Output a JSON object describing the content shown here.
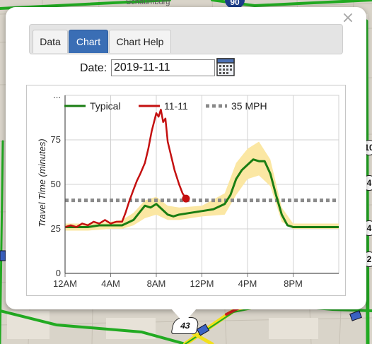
{
  "map": {
    "labels": [
      "Schaumburg"
    ],
    "shields": [
      "90",
      "43"
    ],
    "edge_shields": [
      "10",
      "4",
      "4",
      "2"
    ],
    "colors": {
      "background": "#d8d3c8",
      "road_green": "#22aa22",
      "road_yellow": "#f2e01a",
      "road_red": "#d42020"
    }
  },
  "popup": {
    "close_label": "×",
    "tabs": [
      {
        "label": "Data",
        "active": false
      },
      {
        "label": "Chart",
        "active": true
      },
      {
        "label": "Chart Help",
        "active": false
      }
    ],
    "date_label": "Date:",
    "date_value": "2019-11-11",
    "calendar_icon": "calendar-icon"
  },
  "chart_data": {
    "type": "line",
    "title": "",
    "xlabel": "",
    "ylabel": "Travel Time (minutes)",
    "xlim": [
      0,
      24
    ],
    "ylim": [
      0,
      100
    ],
    "x_ticks": [
      0,
      4,
      8,
      12,
      16,
      20
    ],
    "x_tick_labels": [
      "12AM",
      "4AM",
      "8AM",
      "12PM",
      "4PM",
      "8PM"
    ],
    "y_ticks": [
      0,
      25,
      50,
      75
    ],
    "y_tick_labels": [
      "0",
      "25",
      "50",
      "75"
    ],
    "top_tick_label": "...",
    "grid": true,
    "legend_position": "top",
    "colors": {
      "typical": "#1a7d12",
      "band": "#fbe7a3",
      "today": "#c41010",
      "threshold": "#8a8a8a"
    },
    "series": [
      {
        "name": "Typical",
        "style": "line",
        "x": [
          0,
          1,
          2,
          3,
          4,
          5,
          6,
          6.5,
          7,
          7.5,
          8,
          8.5,
          9,
          9.5,
          10,
          11,
          12,
          13,
          14,
          14.5,
          15,
          15.5,
          16,
          16.5,
          17,
          17.5,
          18,
          18.5,
          19,
          19.5,
          20,
          21,
          22,
          23,
          24
        ],
        "y": [
          26,
          26,
          26,
          27,
          27,
          27,
          30,
          34,
          38,
          37,
          39,
          36,
          33,
          32,
          33,
          34,
          35,
          36,
          39,
          44,
          53,
          58,
          61,
          64,
          63,
          63,
          56,
          44,
          33,
          27,
          26,
          26,
          26,
          26,
          26
        ]
      },
      {
        "name": "Typical range",
        "style": "band",
        "x": [
          0,
          2,
          4,
          5,
          6,
          7,
          8,
          9,
          10,
          12,
          14,
          15,
          16,
          17,
          18,
          19,
          20,
          22,
          24
        ],
        "lower": [
          24,
          24,
          25,
          25,
          27,
          31,
          33,
          30,
          30,
          32,
          33,
          44,
          53,
          55,
          49,
          29,
          25,
          25,
          25
        ],
        "upper": [
          28,
          28,
          29,
          30,
          34,
          41,
          43,
          38,
          37,
          38,
          45,
          62,
          70,
          74,
          64,
          37,
          28,
          28,
          28
        ]
      },
      {
        "name": "11-11",
        "style": "line",
        "x": [
          0,
          0.5,
          1,
          1.5,
          2,
          2.5,
          3,
          3.5,
          4,
          4.5,
          5,
          5.3,
          5.6,
          6,
          6.3,
          6.6,
          7,
          7.3,
          7.6,
          8,
          8.2,
          8.4,
          8.6,
          8.8,
          9,
          9.3,
          9.6,
          10,
          10.3,
          10.6
        ],
        "y": [
          26,
          27,
          26,
          28,
          27,
          29,
          28,
          30,
          28,
          29,
          29,
          34,
          40,
          47,
          52,
          56,
          62,
          70,
          80,
          90,
          88,
          92,
          85,
          87,
          74,
          66,
          58,
          50,
          45,
          42
        ],
        "end_marker": true
      },
      {
        "name": "35 MPH",
        "style": "dotted",
        "x": [
          0,
          24
        ],
        "y": [
          41,
          41
        ]
      }
    ],
    "legend": [
      {
        "label": "Typical",
        "series": "Typical"
      },
      {
        "label": "11-11",
        "series": "11-11"
      },
      {
        "label": "35 MPH",
        "series": "35 MPH"
      }
    ]
  }
}
